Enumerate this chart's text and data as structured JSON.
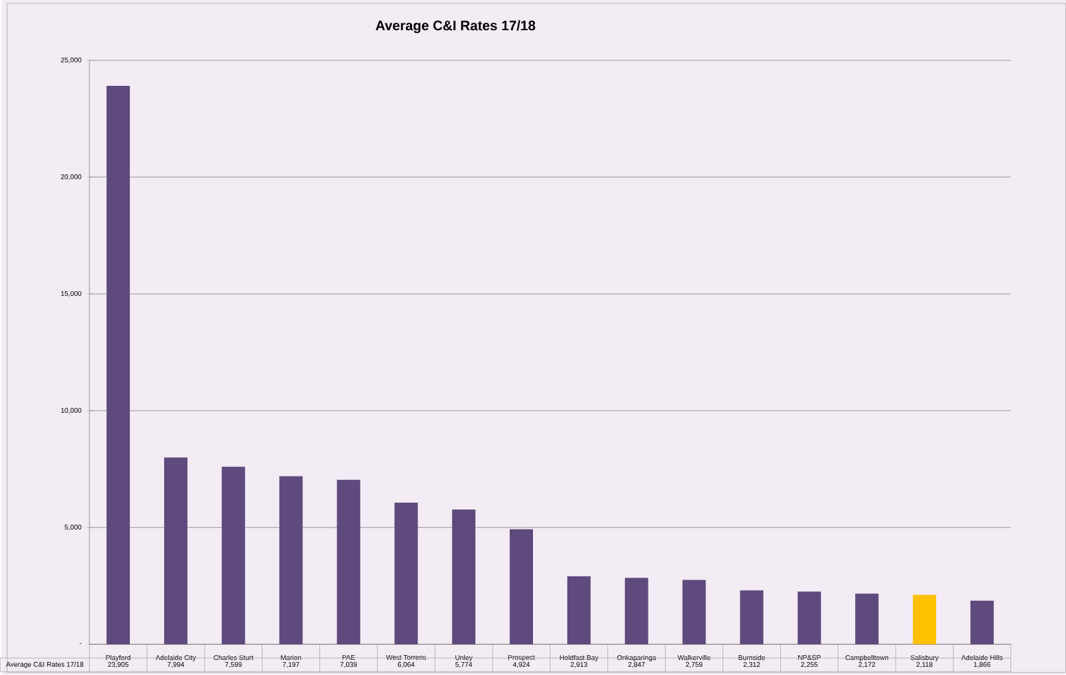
{
  "chart_data": {
    "type": "bar",
    "title": "Average C&I Rates 17/18",
    "categories": [
      "Playford",
      "Adelaide City",
      "Charles Sturt",
      "Marion",
      "PAE",
      "West Torrens",
      "Unley",
      "Prospect",
      "Holdfast Bay",
      "Onkaparinga",
      "Walkerville",
      "Burnside",
      "NP&SP",
      "Campbelltown",
      "Salisbury",
      "Adelaide Hills"
    ],
    "series": [
      {
        "name": "Average C&I Rates 17/18",
        "values": [
          23905,
          7994,
          7599,
          7197,
          7039,
          6064,
          5774,
          4924,
          2913,
          2847,
          2759,
          2312,
          2255,
          2172,
          2118,
          1866
        ],
        "colors": [
          "#5e4a7c",
          "#5e4a7c",
          "#5e4a7c",
          "#5e4a7c",
          "#5e4a7c",
          "#5e4a7c",
          "#5e4a7c",
          "#5e4a7c",
          "#5e4a7c",
          "#5e4a7c",
          "#5e4a7c",
          "#5e4a7c",
          "#5e4a7c",
          "#5e4a7c",
          "#ffc000",
          "#5e4a7c"
        ],
        "value_labels": [
          "23,905",
          "7,994",
          "7,599",
          "7,197",
          "7,039",
          "6,064",
          "5,774",
          "4,924",
          "2,913",
          "2,847",
          "2,759",
          "2,312",
          "2,255",
          "2,172",
          "2,118",
          "1,866"
        ]
      }
    ],
    "ylim": [
      0,
      25000
    ],
    "yticks": [
      {
        "value": 0,
        "label": "-"
      },
      {
        "value": 5000,
        "label": "5,000"
      },
      {
        "value": 10000,
        "label": "10,000"
      },
      {
        "value": 15000,
        "label": "15,000"
      },
      {
        "value": 20000,
        "label": "20,000"
      },
      {
        "value": 25000,
        "label": "25,000"
      }
    ],
    "grid": "y"
  }
}
